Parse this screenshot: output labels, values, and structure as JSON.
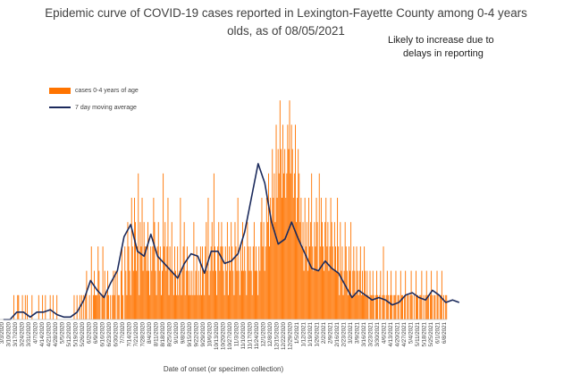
{
  "chart_data": {
    "type": "bar",
    "title": "Epidemic curve of COVID-19 cases reported in Lexington-Fayette County among 0-4 years",
    "title_line2": "olds, as of 08/05/2021",
    "annotation_line1": "Likely to increase due to",
    "annotation_line2": "delays in reporting",
    "xlabel": "Date of onset (or specimen collection)",
    "ylabel": "",
    "legend_placement": "top-left",
    "grid": false,
    "ylim": [
      0,
      10
    ],
    "series": [
      {
        "name": "cases 0-4 years of age",
        "kind": "bar",
        "color": "#ff7400"
      },
      {
        "name": "7 day moving average",
        "kind": "line",
        "color": "#1b2a5c"
      }
    ],
    "tick_labels": [
      "3/3/2020",
      "3/10/2020",
      "3/17/2020",
      "3/24/2020",
      "3/31/2020",
      "4/7/2020",
      "4/14/2020",
      "4/21/2020",
      "4/28/2020",
      "5/5/2020",
      "5/12/2020",
      "5/19/2020",
      "5/26/2020",
      "6/2/2020",
      "6/9/2020",
      "6/16/2020",
      "6/23/2020",
      "6/30/2020",
      "7/7/2020",
      "7/14/2020",
      "7/21/2020",
      "7/28/2020",
      "8/4/2020",
      "8/11/2020",
      "8/18/2020",
      "8/25/2020",
      "9/1/2020",
      "9/8/2020",
      "9/15/2020",
      "9/22/2020",
      "9/29/2020",
      "10/6/2020",
      "10/13/2020",
      "10/20/2020",
      "10/27/2020",
      "11/3/2020",
      "11/10/2020",
      "11/17/2020",
      "11/24/2020",
      "12/1/2020",
      "12/8/2020",
      "12/15/2020",
      "12/22/2020",
      "12/29/2020",
      "1/5/2021",
      "1/12/2021",
      "1/19/2021",
      "1/26/2021",
      "2/2/2021",
      "2/9/2021",
      "2/16/2021",
      "2/23/2021",
      "3/2/2021",
      "3/9/2021",
      "3/16/2021",
      "3/23/2021",
      "3/30/2021",
      "4/6/2021",
      "4/13/2021",
      "4/20/2021",
      "4/27/2021",
      "5/4/2021",
      "5/11/2021",
      "5/18/2021",
      "5/25/2021",
      "6/1/2021",
      "6/8/2021",
      "6/15/2021",
      "6/22/2021"
    ],
    "weekly_cases_avg": [
      0,
      0,
      0.3,
      0.3,
      0.1,
      0.3,
      0.3,
      0.4,
      0.2,
      0.1,
      0.1,
      0.3,
      0.8,
      1.6,
      1.2,
      0.9,
      1.5,
      2.0,
      3.4,
      3.9,
      2.8,
      2.6,
      3.5,
      2.6,
      2.3,
      2.0,
      1.7,
      2.3,
      2.7,
      2.6,
      1.9,
      2.8,
      2.8,
      2.3,
      2.4,
      2.7,
      3.6,
      5.0,
      6.4,
      5.6,
      4.0,
      3.1,
      3.3,
      4.0,
      3.3,
      2.7,
      2.1,
      2.0,
      2.4,
      2.1,
      1.9,
      1.4,
      0.9,
      1.2,
      1.0,
      0.8,
      0.9,
      0.8,
      0.6,
      0.7,
      1.0,
      1.1,
      0.9,
      0.8,
      1.2,
      1.0,
      0.7,
      0.8,
      0.7
    ],
    "daily_cases": [
      0,
      0,
      0,
      0,
      0,
      0,
      0,
      0,
      0,
      0,
      0,
      0,
      0,
      0,
      1,
      0,
      0,
      0,
      1,
      1,
      0,
      0,
      0,
      1,
      0,
      0,
      1,
      0,
      1,
      0,
      0,
      0,
      0,
      1,
      0,
      0,
      0,
      0,
      0,
      0,
      1,
      0,
      0,
      0,
      1,
      0,
      0,
      1,
      0,
      0,
      0,
      0,
      1,
      0,
      0,
      1,
      0,
      0,
      0,
      1,
      0,
      0,
      0,
      0,
      0,
      0,
      0,
      0,
      0,
      0,
      0,
      0,
      0,
      0,
      0,
      0,
      0,
      1,
      0,
      0,
      1,
      0,
      0,
      1,
      0,
      1,
      0,
      1,
      0,
      1,
      2,
      0,
      0,
      1,
      0,
      3,
      0,
      1,
      2,
      1,
      1,
      1,
      3,
      2,
      1,
      0,
      1,
      3,
      1,
      2,
      0,
      1,
      2,
      1,
      0,
      1,
      0,
      1,
      2,
      1,
      2,
      0,
      2,
      1,
      1,
      0,
      2,
      3,
      1,
      0,
      3,
      2,
      1,
      4,
      3,
      2,
      1,
      5,
      3,
      2,
      5,
      4,
      2,
      3,
      6,
      1,
      4,
      3,
      5,
      2,
      4,
      3,
      3,
      2,
      4,
      2,
      1,
      3,
      2,
      3,
      5,
      4,
      2,
      1,
      3,
      4,
      2,
      3,
      1,
      2,
      6,
      3,
      4,
      2,
      3,
      5,
      1,
      3,
      2,
      4,
      2,
      1,
      3,
      2,
      1,
      3,
      1,
      2,
      5,
      1,
      2,
      3,
      4,
      1,
      2,
      3,
      2,
      1,
      2,
      1,
      2,
      1,
      4,
      1,
      2,
      3,
      1,
      2,
      1,
      3,
      1,
      3,
      2,
      1,
      3,
      4,
      2,
      5,
      1,
      2,
      3,
      4,
      2,
      6,
      3,
      2,
      1,
      3,
      4,
      2,
      3,
      4,
      3,
      2,
      1,
      3,
      2,
      4,
      1,
      3,
      2,
      4,
      3,
      2,
      1,
      4,
      3,
      2,
      5,
      2,
      1,
      3,
      2,
      4,
      2,
      3,
      2,
      1,
      4,
      3,
      2,
      3,
      2,
      1,
      3,
      4,
      2,
      3,
      2,
      1,
      3,
      2,
      4,
      5,
      3,
      4,
      2,
      3,
      5,
      4,
      6,
      3,
      5,
      4,
      7,
      5,
      6,
      4,
      8,
      5,
      7,
      6,
      9,
      7,
      5,
      8,
      6,
      7,
      5,
      6,
      8,
      7,
      9,
      6,
      8,
      7,
      5,
      6,
      8,
      4,
      5,
      7,
      6,
      4,
      5,
      3,
      4,
      2,
      5,
      3,
      4,
      2,
      5,
      3,
      4,
      6,
      3,
      2,
      4,
      3,
      5,
      4,
      2,
      6,
      3,
      5,
      4,
      3,
      2,
      4,
      5,
      3,
      4,
      2,
      3,
      5,
      4,
      3,
      2,
      4,
      3,
      2,
      5,
      3,
      1,
      4,
      2,
      3,
      1,
      2,
      4,
      3,
      2,
      1,
      3,
      2,
      4,
      1,
      2,
      3,
      2,
      1,
      3,
      2,
      1,
      2,
      3,
      1,
      2,
      1,
      3,
      2,
      1,
      2,
      1,
      0,
      2,
      1,
      1,
      2,
      1,
      0,
      1,
      2,
      1,
      0,
      1,
      2,
      0,
      1,
      3,
      1,
      0,
      1,
      2,
      1,
      0,
      1,
      2,
      1,
      0,
      1,
      1,
      2,
      0,
      1,
      1,
      0,
      2,
      1,
      1,
      0,
      1,
      2,
      0,
      1,
      1,
      0,
      1,
      2,
      1,
      0,
      1,
      0,
      2,
      1,
      1,
      0,
      1,
      1,
      2,
      0,
      1,
      0,
      1,
      2,
      1,
      1,
      0,
      1,
      2,
      1,
      0,
      1,
      1,
      0,
      2,
      1,
      0,
      1,
      1,
      2,
      0,
      1,
      0,
      1,
      1,
      2,
      0,
      1
    ]
  }
}
